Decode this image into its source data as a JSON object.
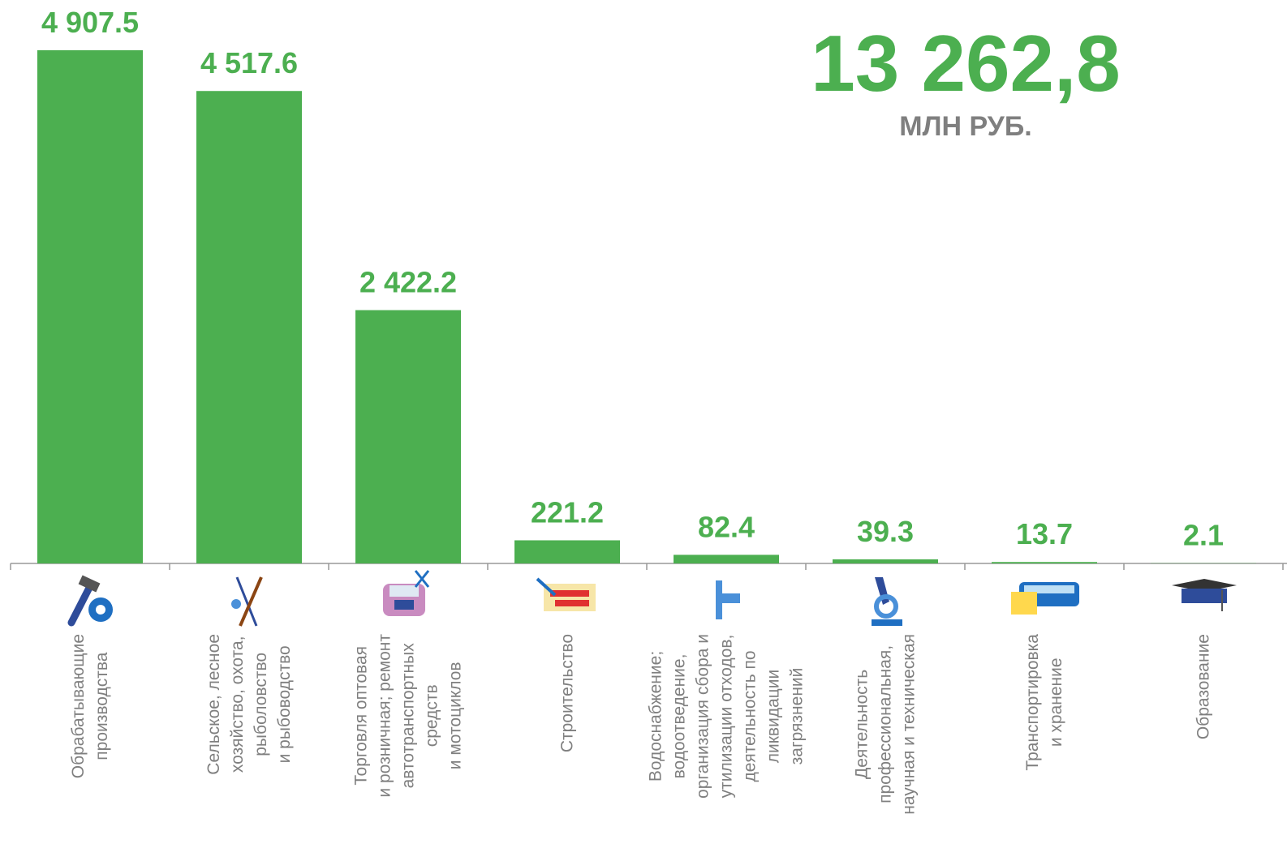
{
  "chart_data": {
    "type": "bar",
    "categories": [
      "Обрабатывающие\nпроизводства",
      "Сельское, лесное\nхозяйство, охота,\nрыболовство\nи рыбоводство",
      "Торговля оптовая\nи розничная; ремонт\nавтотранспортных\nсредств\nи мотоциклов",
      "Строительство",
      "Водоснабжение;\nводоотведение,\nорганизация сбора и\nутилизации отходов,\nдеятельность по\nликвидации\nзагрязнений",
      "Деятельность\nпрофессиональная,\nнаучная и техническая",
      "Транспортировка\nи хранение",
      "Образование"
    ],
    "values": [
      4907.5,
      4517.6,
      2422.2,
      221.2,
      82.4,
      39.3,
      13.7,
      2.1
    ],
    "value_labels": [
      "4 907.5",
      "4 517.6",
      "2 422.2",
      "221.2",
      "82.4",
      "39.3",
      "13.7",
      "2.1"
    ],
    "color": "#4caf50",
    "ylim": [
      0,
      5000
    ],
    "annotations": [
      "13 262,8",
      "МЛН РУБ."
    ]
  }
}
